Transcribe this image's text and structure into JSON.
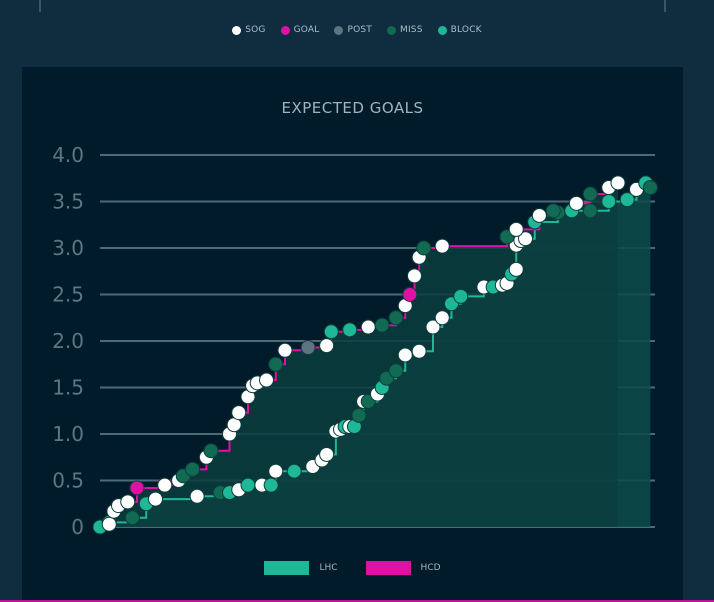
{
  "legend_shots": [
    {
      "label": "SOG",
      "color": "#ffffff"
    },
    {
      "label": "GOAL",
      "color": "#e010a5"
    },
    {
      "label": "POST",
      "color": "#5f7482"
    },
    {
      "label": "MISS",
      "color": "#116b52"
    },
    {
      "label": "BLOCK",
      "color": "#1fb896"
    }
  ],
  "chart_data": {
    "type": "area",
    "title": "EXPECTED GOALS",
    "ylim": [
      0,
      4.0
    ],
    "y_ticks": [
      "0",
      "0.5",
      "1.0",
      "1.5",
      "2.0",
      "2.5",
      "3.0",
      "3.5",
      "4.0"
    ],
    "x_range": [
      0,
      60
    ],
    "series": [
      {
        "name": "LHC",
        "color": "#1fb896",
        "fill": "#0c4b4a",
        "points": [
          [
            0.0,
            0.0,
            "BLOCK"
          ],
          [
            1.0,
            0.05,
            "BLOCK"
          ],
          [
            3.5,
            0.1,
            "MISS"
          ],
          [
            5.0,
            0.25,
            "BLOCK"
          ],
          [
            6.0,
            0.3,
            "SOG"
          ],
          [
            10.5,
            0.33,
            "SOG"
          ],
          [
            13.0,
            0.37,
            "MISS"
          ],
          [
            14.0,
            0.37,
            "BLOCK"
          ],
          [
            15.0,
            0.4,
            "SOG"
          ],
          [
            16.0,
            0.45,
            "BLOCK"
          ],
          [
            17.5,
            0.45,
            "SOG"
          ],
          [
            18.5,
            0.45,
            "BLOCK"
          ],
          [
            19.0,
            0.6,
            "SOG"
          ],
          [
            21.0,
            0.6,
            "BLOCK"
          ],
          [
            23.0,
            0.65,
            "SOG"
          ],
          [
            24.0,
            0.72,
            "SOG"
          ],
          [
            24.5,
            0.78,
            "SOG"
          ],
          [
            25.5,
            1.03,
            "SOG"
          ],
          [
            26.0,
            1.05,
            "SOG"
          ],
          [
            26.5,
            1.08,
            "BLOCK"
          ],
          [
            27.0,
            1.08,
            "SOG"
          ],
          [
            27.5,
            1.08,
            "BLOCK"
          ],
          [
            28.0,
            1.2,
            "MISS"
          ],
          [
            28.5,
            1.35,
            "SOG"
          ],
          [
            29.0,
            1.35,
            "MISS"
          ],
          [
            30.0,
            1.43,
            "SOG"
          ],
          [
            30.5,
            1.5,
            "BLOCK"
          ],
          [
            31.0,
            1.6,
            "MISS"
          ],
          [
            32.0,
            1.68,
            "MISS"
          ],
          [
            33.0,
            1.85,
            "SOG"
          ],
          [
            34.5,
            1.89,
            "SOG"
          ],
          [
            36.0,
            2.15,
            "SOG"
          ],
          [
            37.0,
            2.25,
            "SOG"
          ],
          [
            38.0,
            2.4,
            "BLOCK"
          ],
          [
            39.0,
            2.48,
            "BLOCK"
          ],
          [
            41.5,
            2.58,
            "SOG"
          ],
          [
            42.5,
            2.58,
            "BLOCK"
          ],
          [
            43.5,
            2.6,
            "SOG"
          ],
          [
            44.0,
            2.62,
            "SOG"
          ],
          [
            44.5,
            2.72,
            "BLOCK"
          ],
          [
            45.0,
            2.77,
            "SOG"
          ],
          [
            45.0,
            3.03,
            "SOG"
          ],
          [
            45.5,
            3.08,
            "SOG"
          ],
          [
            46.0,
            3.1,
            "SOG"
          ],
          [
            47.0,
            3.28,
            "BLOCK"
          ],
          [
            49.5,
            3.38,
            "MISS"
          ],
          [
            51.0,
            3.4,
            "BLOCK"
          ],
          [
            53.0,
            3.4,
            "MISS"
          ],
          [
            55.0,
            3.5,
            "BLOCK"
          ],
          [
            57.0,
            3.52,
            "BLOCK"
          ],
          [
            58.0,
            3.63,
            "SOG"
          ],
          [
            59.0,
            3.7,
            "BLOCK"
          ],
          [
            59.5,
            3.65,
            "MISS"
          ]
        ]
      },
      {
        "name": "HCD",
        "color": "#e010a5",
        "fill": "#0b3d3e",
        "points": [
          [
            1.0,
            0.03,
            "SOG"
          ],
          [
            1.5,
            0.17,
            "SOG"
          ],
          [
            2.0,
            0.23,
            "SOG"
          ],
          [
            3.0,
            0.27,
            "SOG"
          ],
          [
            4.0,
            0.42,
            "GOAL"
          ],
          [
            7.0,
            0.45,
            "SOG"
          ],
          [
            8.5,
            0.5,
            "SOG"
          ],
          [
            9.0,
            0.55,
            "MISS"
          ],
          [
            10.0,
            0.62,
            "MISS"
          ],
          [
            11.5,
            0.75,
            "SOG"
          ],
          [
            12.0,
            0.82,
            "MISS"
          ],
          [
            14.0,
            1.0,
            "SOG"
          ],
          [
            14.5,
            1.1,
            "SOG"
          ],
          [
            15.0,
            1.23,
            "SOG"
          ],
          [
            16.0,
            1.4,
            "SOG"
          ],
          [
            16.5,
            1.52,
            "SOG"
          ],
          [
            17.0,
            1.55,
            "SOG"
          ],
          [
            18.0,
            1.58,
            "SOG"
          ],
          [
            19.0,
            1.75,
            "MISS"
          ],
          [
            20.0,
            1.9,
            "SOG"
          ],
          [
            22.5,
            1.93,
            "POST"
          ],
          [
            24.5,
            1.95,
            "SOG"
          ],
          [
            25.0,
            2.1,
            "BLOCK"
          ],
          [
            27.0,
            2.12,
            "BLOCK"
          ],
          [
            29.0,
            2.15,
            "SOG"
          ],
          [
            30.5,
            2.17,
            "MISS"
          ],
          [
            32.0,
            2.25,
            "MISS"
          ],
          [
            33.0,
            2.38,
            "SOG"
          ],
          [
            33.5,
            2.5,
            "GOAL"
          ],
          [
            34.0,
            2.7,
            "SOG"
          ],
          [
            34.5,
            2.9,
            "SOG"
          ],
          [
            35.0,
            3.0,
            "MISS"
          ],
          [
            37.0,
            3.02,
            "SOG"
          ],
          [
            44.0,
            3.12,
            "MISS"
          ],
          [
            45.0,
            3.2,
            "SOG"
          ],
          [
            47.5,
            3.35,
            "SOG"
          ],
          [
            49.0,
            3.4,
            "MISS"
          ],
          [
            51.5,
            3.48,
            "SOG"
          ],
          [
            53.0,
            3.58,
            "MISS"
          ],
          [
            55.0,
            3.65,
            "SOG"
          ],
          [
            56.0,
            3.7,
            "SOG"
          ]
        ]
      }
    ],
    "legend_placement": "bottom-center"
  },
  "dot_colors": {
    "SOG": "#ffffff",
    "GOAL": "#e010a5",
    "POST": "#5f7482",
    "MISS": "#116b52",
    "BLOCK": "#1fb896"
  }
}
